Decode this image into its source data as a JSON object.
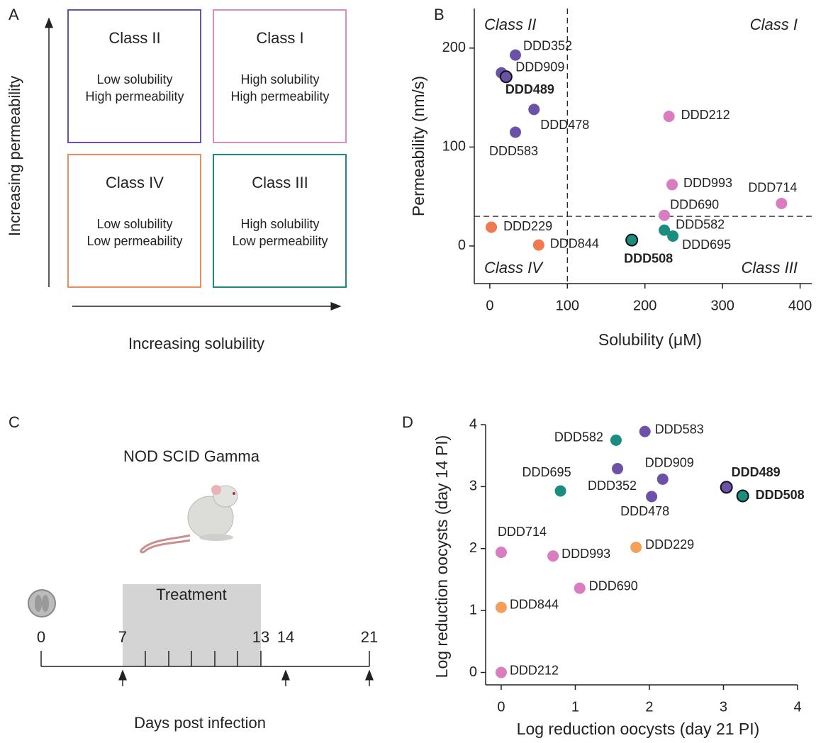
{
  "panel_a": {
    "panel_label": "A",
    "y_axis_label": "Increasing permeability",
    "x_axis_label": "Increasing solubility",
    "boxes": [
      {
        "title": "Class II",
        "lines": [
          "Low solubility",
          "High permeability"
        ],
        "color": "#6b51a8"
      },
      {
        "title": "Class I",
        "lines": [
          "High solubility",
          "High permeability"
        ],
        "color": "#d98cc6"
      },
      {
        "title": "Class IV",
        "lines": [
          "Low solubility",
          "Low permeability"
        ],
        "color": "#ef8a5c"
      },
      {
        "title": "Class III",
        "lines": [
          "High solubility",
          "Low permeability"
        ],
        "color": "#1c8a80"
      }
    ]
  },
  "panel_c": {
    "panel_label": "C",
    "title": "NOD SCID Gamma",
    "treatment_label": "Treatment",
    "days": [
      "0",
      "7",
      "13",
      "14",
      "21"
    ],
    "x_axis_label": "Days post infection"
  },
  "chart_data": [
    {
      "type": "scatter",
      "panel_label": "B",
      "x_label": "Solubility (μM)",
      "y_label": "Permeability (nm/s)",
      "xlim": [
        -20,
        415
      ],
      "ylim": [
        -38,
        240
      ],
      "xticks": [
        0,
        100,
        200,
        300,
        400
      ],
      "yticks": [
        0,
        100,
        200
      ],
      "reference_lines": {
        "x": 100,
        "y": 30
      },
      "quadrant_labels": {
        "top_left": "Class II",
        "top_right": "Class I",
        "bottom_left": "Class IV",
        "bottom_right": "Class III"
      },
      "series": [
        {
          "color": "#6b51a8",
          "labels": [
            "DDD352",
            "DDD909",
            "DDD489",
            "DDD478",
            "DDD583"
          ],
          "x": [
            33,
            15,
            21,
            57,
            33
          ],
          "values": [
            193,
            175,
            171,
            138,
            115
          ],
          "highlighted": [
            false,
            false,
            true,
            false,
            false
          ]
        },
        {
          "color": "#d97cc0",
          "labels": [
            "DDD212",
            "DDD993",
            "DDD714",
            "DDD690"
          ],
          "x": [
            231,
            235,
            376,
            225
          ],
          "values": [
            131,
            62,
            43,
            31
          ],
          "highlighted": [
            false,
            false,
            false,
            false
          ]
        },
        {
          "color": "#1a8c80",
          "labels": [
            "DDD582",
            "DDD695",
            "DDD508"
          ],
          "x": [
            225,
            236,
            183
          ],
          "values": [
            16,
            10,
            6
          ],
          "highlighted": [
            false,
            false,
            true
          ]
        },
        {
          "color": "#ef7a50",
          "labels": [
            "DDD229",
            "DDD844"
          ],
          "x": [
            2,
            63
          ],
          "values": [
            19,
            1
          ],
          "highlighted": [
            false,
            false
          ]
        }
      ]
    },
    {
      "type": "scatter",
      "panel_label": "D",
      "x_label": "Log reduction oocysts (day 21 PI)",
      "y_label": "Log reduction oocysts (day 14 PI)",
      "xlim": [
        -0.21,
        4
      ],
      "ylim": [
        -0.2,
        4
      ],
      "xticks": [
        0,
        1,
        2,
        3,
        4
      ],
      "yticks": [
        0,
        1,
        2,
        3,
        4
      ],
      "series": [
        {
          "color": "#6b51a8",
          "labels": [
            "DDD352",
            "DDD909",
            "DDD489",
            "DDD478",
            "DDD583"
          ],
          "x": [
            1.57,
            2.18,
            3.04,
            2.03,
            1.94
          ],
          "values": [
            3.29,
            3.12,
            2.99,
            2.84,
            3.89
          ],
          "highlighted": [
            false,
            false,
            true,
            false,
            false
          ]
        },
        {
          "color": "#d97cc0",
          "labels": [
            "DDD212",
            "DDD993",
            "DDD714",
            "DDD690"
          ],
          "x": [
            0,
            0.7,
            0,
            1.06
          ],
          "values": [
            0,
            1.88,
            1.94,
            1.36
          ],
          "highlighted": [
            false,
            false,
            false,
            false
          ]
        },
        {
          "color": "#1a8c80",
          "labels": [
            "DDD582",
            "DDD695",
            "DDD508"
          ],
          "x": [
            1.55,
            0.8,
            3.26
          ],
          "values": [
            3.75,
            2.93,
            2.85
          ],
          "highlighted": [
            false,
            false,
            true
          ]
        },
        {
          "color": "#f5a05a",
          "labels": [
            "DDD229",
            "DDD844"
          ],
          "x": [
            1.82,
            0
          ],
          "values": [
            2.02,
            1.05
          ],
          "highlighted": [
            false,
            false
          ]
        }
      ]
    }
  ]
}
